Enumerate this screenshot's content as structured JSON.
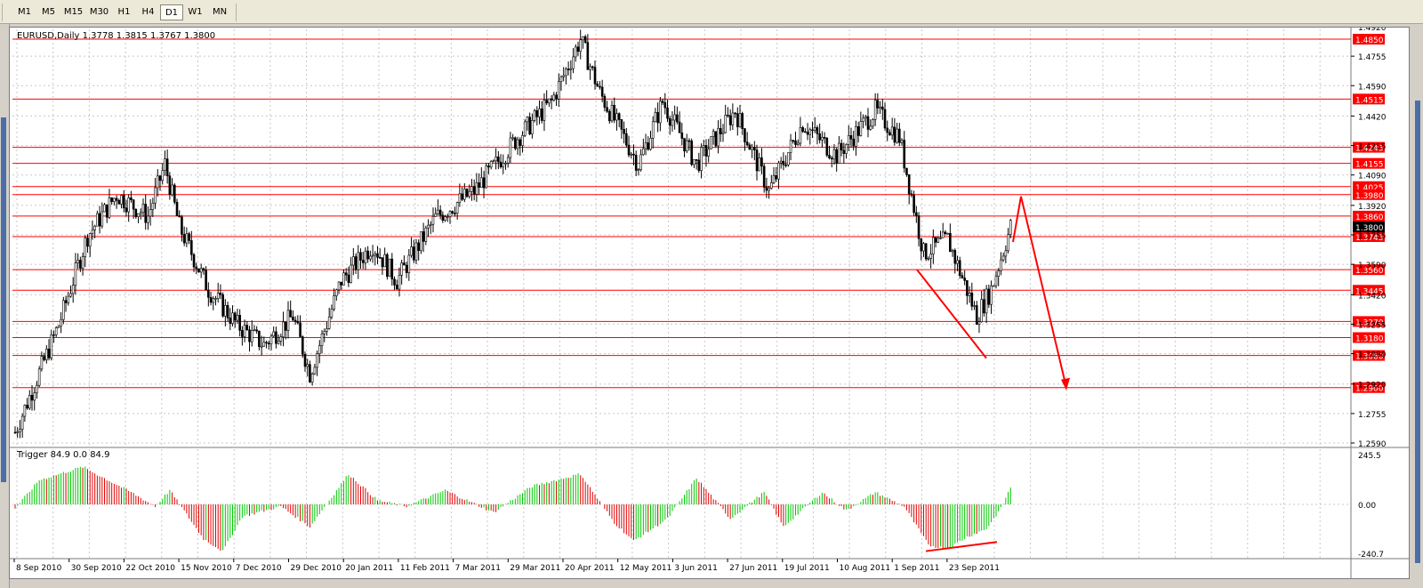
{
  "toolbar": {
    "timeframes": [
      "M1",
      "M5",
      "M15",
      "M30",
      "H1",
      "H4",
      "D1",
      "W1",
      "MN"
    ],
    "active": "D1"
  },
  "main_chart": {
    "header": "EURUSD,Daily  1.3778 1.3815 1.3767 1.3800",
    "price_ticks": [
      "1.4920",
      "1.4755",
      "1.4590",
      "1.4420",
      "1.4255",
      "1.4090",
      "1.3920",
      "1.3755",
      "1.3590",
      "1.3420",
      "1.3255",
      "1.3090",
      "1.2920",
      "1.2755",
      "1.2590"
    ],
    "current_price": "1.3800",
    "level_labels": [
      "1.4850",
      "1.4515",
      "1.4245",
      "1.4155",
      "1.4025",
      "1.3980",
      "1.3860",
      "1.3745",
      "1.3560",
      "1.3445",
      "1.3270",
      "1.3180",
      "1.3080",
      "1.2900"
    ]
  },
  "indicator": {
    "header": "Trigger 84.9 0.0 84.9",
    "ticks": [
      "245.5",
      "0.00",
      "-240.7"
    ]
  },
  "date_labels": [
    "8 Sep 2010",
    "30 Sep 2010",
    "22 Oct 2010",
    "15 Nov 2010",
    "7 Dec 2010",
    "29 Dec 2010",
    "20 Jan 2011",
    "11 Feb 2011",
    "7 Mar 2011",
    "29 Mar 2011",
    "20 Apr 2011",
    "12 May 2011",
    "3 Jun 2011",
    "27 Jun 2011",
    "19 Jul 2011",
    "10 Aug 2011",
    "1 Sep 2011",
    "23 Sep 2011"
  ],
  "colors": {
    "level": "#ff0000",
    "bull": "#00b800",
    "bear": "#000000",
    "hist_up": "#00c800",
    "hist_down": "#e00000",
    "grid": "#c8c8c8"
  },
  "chart_data": {
    "type": "candlestick",
    "symbol": "EURUSD,Daily",
    "ohlc_last": {
      "open": 1.3778,
      "high": 1.3815,
      "low": 1.3767,
      "close": 1.38
    },
    "ylim": [
      1.259,
      1.492
    ],
    "horizontal_levels": [
      1.485,
      1.4515,
      1.4245,
      1.4155,
      1.4025,
      1.398,
      1.386,
      1.3745,
      1.356,
      1.3445,
      1.327,
      1.318,
      1.308,
      1.29
    ],
    "close_path_keypoints": [
      {
        "t": 0,
        "v": 1.265
      },
      {
        "t": 18,
        "v": 1.325
      },
      {
        "t": 30,
        "v": 1.375
      },
      {
        "t": 42,
        "v": 1.398
      },
      {
        "t": 55,
        "v": 1.386
      },
      {
        "t": 62,
        "v": 1.415
      },
      {
        "t": 68,
        "v": 1.38
      },
      {
        "t": 80,
        "v": 1.345
      },
      {
        "t": 92,
        "v": 1.325
      },
      {
        "t": 103,
        "v": 1.314
      },
      {
        "t": 115,
        "v": 1.33
      },
      {
        "t": 122,
        "v": 1.298
      },
      {
        "t": 135,
        "v": 1.35
      },
      {
        "t": 148,
        "v": 1.37
      },
      {
        "t": 158,
        "v": 1.35
      },
      {
        "t": 174,
        "v": 1.385
      },
      {
        "t": 190,
        "v": 1.4
      },
      {
        "t": 208,
        "v": 1.43
      },
      {
        "t": 222,
        "v": 1.45
      },
      {
        "t": 234,
        "v": 1.485
      },
      {
        "t": 242,
        "v": 1.455
      },
      {
        "t": 258,
        "v": 1.415
      },
      {
        "t": 268,
        "v": 1.45
      },
      {
        "t": 282,
        "v": 1.415
      },
      {
        "t": 298,
        "v": 1.445
      },
      {
        "t": 312,
        "v": 1.4
      },
      {
        "t": 326,
        "v": 1.438
      },
      {
        "t": 340,
        "v": 1.42
      },
      {
        "t": 356,
        "v": 1.445
      },
      {
        "t": 366,
        "v": 1.43
      },
      {
        "t": 376,
        "v": 1.365
      },
      {
        "t": 386,
        "v": 1.373
      },
      {
        "t": 398,
        "v": 1.33
      },
      {
        "t": 404,
        "v": 1.345
      },
      {
        "t": 412,
        "v": 1.38
      }
    ],
    "indicator": {
      "name": "Trigger",
      "ylim": [
        -240.7,
        245.5
      ],
      "keypoints": [
        {
          "t": 0,
          "v": -20
        },
        {
          "t": 10,
          "v": 120
        },
        {
          "t": 28,
          "v": 185
        },
        {
          "t": 48,
          "v": 60
        },
        {
          "t": 58,
          "v": -10
        },
        {
          "t": 64,
          "v": 70
        },
        {
          "t": 78,
          "v": -170
        },
        {
          "t": 86,
          "v": -230
        },
        {
          "t": 94,
          "v": -60
        },
        {
          "t": 110,
          "v": -10
        },
        {
          "t": 122,
          "v": -110
        },
        {
          "t": 138,
          "v": 150
        },
        {
          "t": 150,
          "v": 20
        },
        {
          "t": 162,
          "v": -10
        },
        {
          "t": 178,
          "v": 70
        },
        {
          "t": 198,
          "v": -40
        },
        {
          "t": 214,
          "v": 90
        },
        {
          "t": 234,
          "v": 150
        },
        {
          "t": 248,
          "v": -90
        },
        {
          "t": 256,
          "v": -180
        },
        {
          "t": 270,
          "v": -70
        },
        {
          "t": 282,
          "v": 130
        },
        {
          "t": 296,
          "v": -70
        },
        {
          "t": 310,
          "v": 60
        },
        {
          "t": 318,
          "v": -110
        },
        {
          "t": 334,
          "v": 60
        },
        {
          "t": 344,
          "v": -30
        },
        {
          "t": 356,
          "v": 60
        },
        {
          "t": 368,
          "v": -10
        },
        {
          "t": 378,
          "v": -200
        },
        {
          "t": 386,
          "v": -220
        },
        {
          "t": 394,
          "v": -160
        },
        {
          "t": 402,
          "v": -120
        },
        {
          "t": 408,
          "v": -20
        },
        {
          "t": 412,
          "v": 85
        }
      ]
    },
    "annotations": [
      {
        "type": "trendline",
        "points": [
          [
            1.356,
            "Aug 2011"
          ],
          [
            1.309,
            "Sep 2011"
          ]
        ]
      },
      {
        "type": "arrow-path",
        "points": [
          [
            1.374,
            "Oct 2011"
          ],
          [
            1.398,
            "Oct 2011"
          ],
          [
            1.289,
            "Nov 2011"
          ]
        ]
      },
      {
        "type": "divergence-line",
        "pane": "indicator",
        "points": [
          [
            -230,
            "Sep 2011"
          ],
          [
            -185,
            "Sep 2011"
          ]
        ]
      }
    ]
  }
}
